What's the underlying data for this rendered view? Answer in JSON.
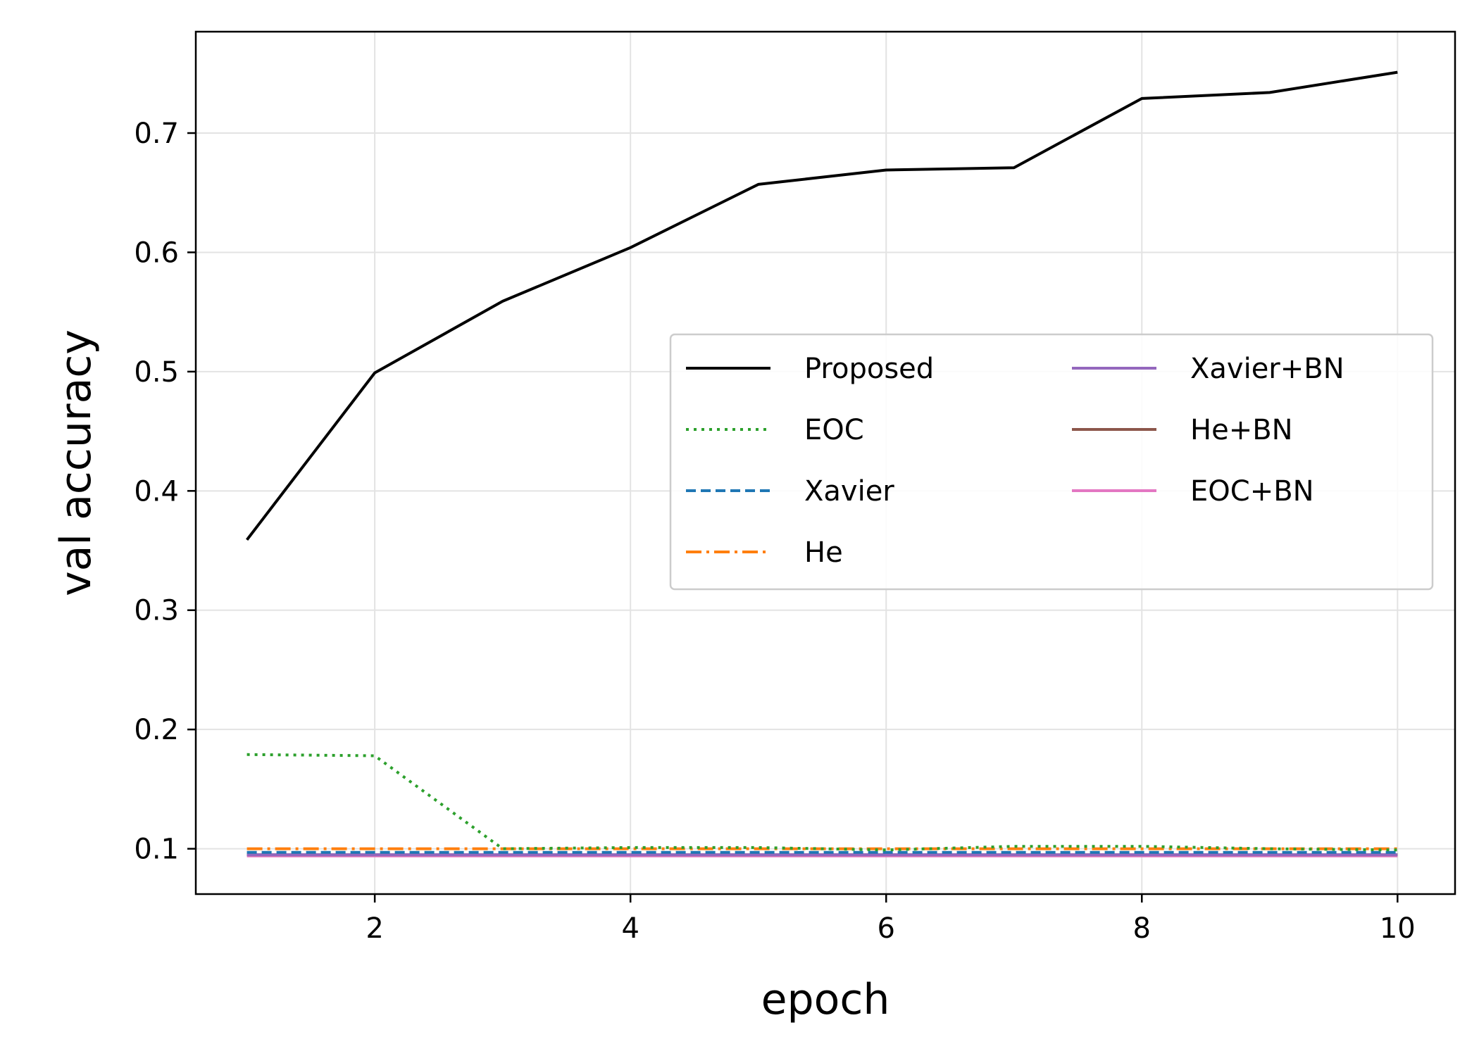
{
  "chart_data": {
    "type": "line",
    "xlabel": "epoch",
    "ylabel": "val accuracy",
    "xlim": [
      0.6,
      10.45
    ],
    "ylim": [
      0.062,
      0.785
    ],
    "xticks": [
      2,
      4,
      6,
      8,
      10
    ],
    "xtick_labels": [
      "2",
      "4",
      "6",
      "8",
      "10"
    ],
    "yticks": [
      0.1,
      0.2,
      0.3,
      0.4,
      0.5,
      0.6,
      0.7
    ],
    "ytick_labels": [
      "0.1",
      "0.2",
      "0.3",
      "0.4",
      "0.5",
      "0.6",
      "0.7"
    ],
    "grid": true,
    "legend_position": "center-right",
    "x": [
      1,
      2,
      3,
      4,
      5,
      6,
      7,
      8,
      9,
      10
    ],
    "series": [
      {
        "name": "Proposed",
        "color": "#000000",
        "dash": "solid",
        "values": [
          0.359,
          0.499,
          0.559,
          0.604,
          0.657,
          0.669,
          0.671,
          0.729,
          0.734,
          0.751
        ]
      },
      {
        "name": "EOC",
        "color": "#2ca02c",
        "dash": "dotted",
        "values": [
          0.179,
          0.178,
          0.1,
          0.101,
          0.101,
          0.099,
          0.102,
          0.102,
          0.1,
          0.099
        ]
      },
      {
        "name": "Xavier",
        "color": "#1f77b4",
        "dash": "dashed",
        "values": [
          0.097,
          0.097,
          0.097,
          0.097,
          0.097,
          0.097,
          0.097,
          0.097,
          0.097,
          0.097
        ]
      },
      {
        "name": "He",
        "color": "#ff7f0e",
        "dash": "dashdot",
        "values": [
          0.1,
          0.1,
          0.1,
          0.1,
          0.1,
          0.1,
          0.1,
          0.1,
          0.1,
          0.1
        ]
      },
      {
        "name": "Xavier+BN",
        "color": "#9467bd",
        "dash": "solid",
        "values": [
          0.095,
          0.095,
          0.095,
          0.095,
          0.095,
          0.095,
          0.095,
          0.095,
          0.095,
          0.095
        ]
      },
      {
        "name": "He+BN",
        "color": "#8c564b",
        "dash": "solid",
        "values": [
          0.095,
          0.095,
          0.095,
          0.095,
          0.095,
          0.095,
          0.095,
          0.095,
          0.095,
          0.095
        ]
      },
      {
        "name": "EOC+BN",
        "color": "#e377c2",
        "dash": "solid",
        "values": [
          0.094,
          0.094,
          0.094,
          0.094,
          0.094,
          0.094,
          0.094,
          0.094,
          0.094,
          0.094
        ]
      }
    ]
  }
}
